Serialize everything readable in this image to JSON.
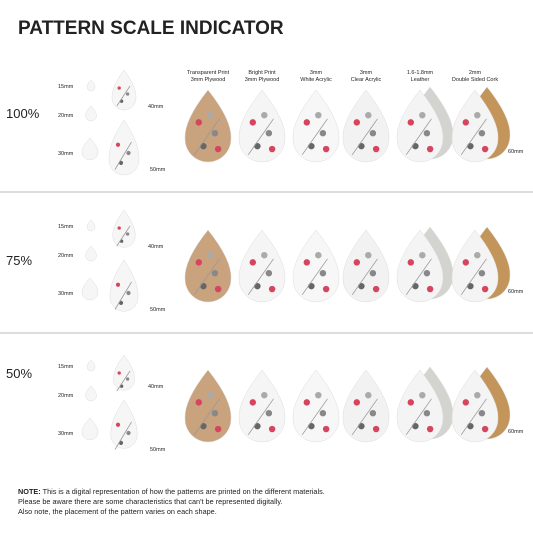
{
  "title": "PATTERN SCALE INDICATOR",
  "materials": [
    {
      "line1": "Transparent Print",
      "line2": "3mm Plywood"
    },
    {
      "line1": "Bright Print",
      "line2": "3mm Plywood"
    },
    {
      "line1": "3mm",
      "line2": "White Acrylic"
    },
    {
      "line1": "3mm",
      "line2": "Clear Acrylic"
    },
    {
      "line1": "1.6-1.8mm",
      "line2": "Leather"
    },
    {
      "line1": "2mm",
      "line2": "Double Sided Cork"
    }
  ],
  "rows": [
    {
      "scale": "100%",
      "sizes": [
        "15mm",
        "20mm",
        "30mm",
        "40mm",
        "50mm"
      ],
      "large_size": "60mm"
    },
    {
      "scale": "75%",
      "sizes": [
        "15mm",
        "20mm",
        "30mm",
        "40mm",
        "50mm"
      ],
      "large_size": "60mm"
    },
    {
      "scale": "50%",
      "sizes": [
        "15mm",
        "20mm",
        "30mm",
        "40mm",
        "50mm"
      ],
      "large_size": "60mm"
    }
  ],
  "note": {
    "label": "NOTE:",
    "lines": [
      "This is a digital representation of how the patterns are printed on the different materials.",
      "Please be aware there are some characteristics that can't be represented digitally.",
      "Also note, the placement of the pattern varies on each shape."
    ]
  }
}
